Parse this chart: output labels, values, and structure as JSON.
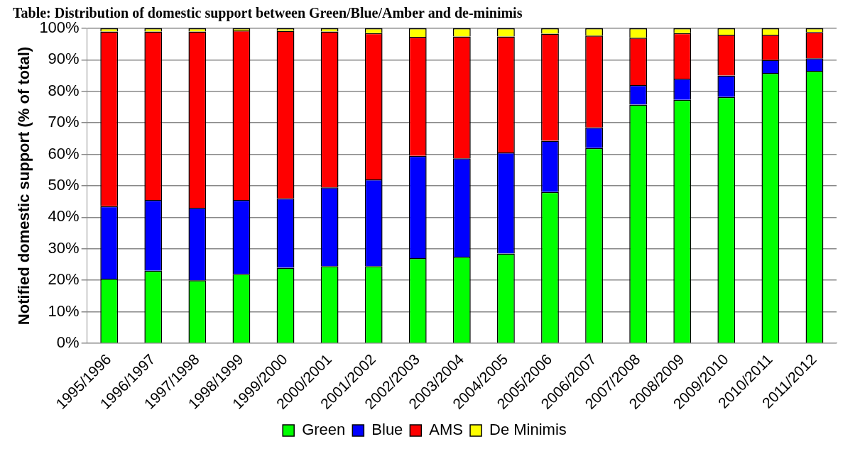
{
  "chart_data": {
    "type": "bar",
    "title": "Table: Distribution of domestic support between Green/Blue/Amber and de-minimis",
    "ylabel": "Notified domestic support (% of total)",
    "categories": [
      "1995/1996",
      "1996/1997",
      "1997/1998",
      "1998/1999",
      "1999/2000",
      "2000/2001",
      "2001/2002",
      "2002/2003",
      "2003/2004",
      "2004/2005",
      "2005/2006",
      "2006/2007",
      "2007/2008",
      "2008/2009",
      "2009/2010",
      "2010/2011",
      "2011/2012"
    ],
    "stacked": true,
    "series": [
      {
        "name": "Green",
        "color": "#00ff00",
        "values": [
          20.5,
          23,
          20,
          22,
          24,
          24.5,
          24.5,
          27,
          27.5,
          28.5,
          48,
          62,
          75.8,
          77.3,
          78.2,
          85.8,
          86.5
        ]
      },
      {
        "name": "Blue",
        "color": "#0000ff",
        "values": [
          23,
          22.5,
          23,
          23.5,
          22,
          25,
          27.5,
          32.5,
          31.2,
          32.1,
          16.3,
          6.5,
          6.2,
          6.7,
          6.8,
          4.2,
          4
        ]
      },
      {
        "name": "AMS",
        "color": "#ff0000",
        "values": [
          55.5,
          53.5,
          56,
          53.8,
          53.2,
          49.5,
          46.5,
          37.8,
          38.7,
          36.8,
          34,
          29.2,
          15,
          14.5,
          13,
          8,
          8.3
        ]
      },
      {
        "name": "De Minimis",
        "color": "#ffff00",
        "values": [
          1,
          1,
          1,
          0.7,
          0.8,
          1,
          1.5,
          2.7,
          2.6,
          2.6,
          1.7,
          2.3,
          3,
          1.5,
          2,
          2,
          1.2
        ]
      }
    ],
    "ylim": [
      0,
      100
    ],
    "yticks": [
      {
        "value": 0,
        "label": "0%"
      },
      {
        "value": 10,
        "label": "10%"
      },
      {
        "value": 20,
        "label": "20%"
      },
      {
        "value": 30,
        "label": "30%"
      },
      {
        "value": 40,
        "label": "40%"
      },
      {
        "value": 50,
        "label": "50%"
      },
      {
        "value": 60,
        "label": "60%"
      },
      {
        "value": 70,
        "label": "70%"
      },
      {
        "value": 80,
        "label": "80%"
      },
      {
        "value": 90,
        "label": "90%"
      },
      {
        "value": 100,
        "label": "100%"
      }
    ],
    "grid": "y",
    "legend": "bottom"
  }
}
